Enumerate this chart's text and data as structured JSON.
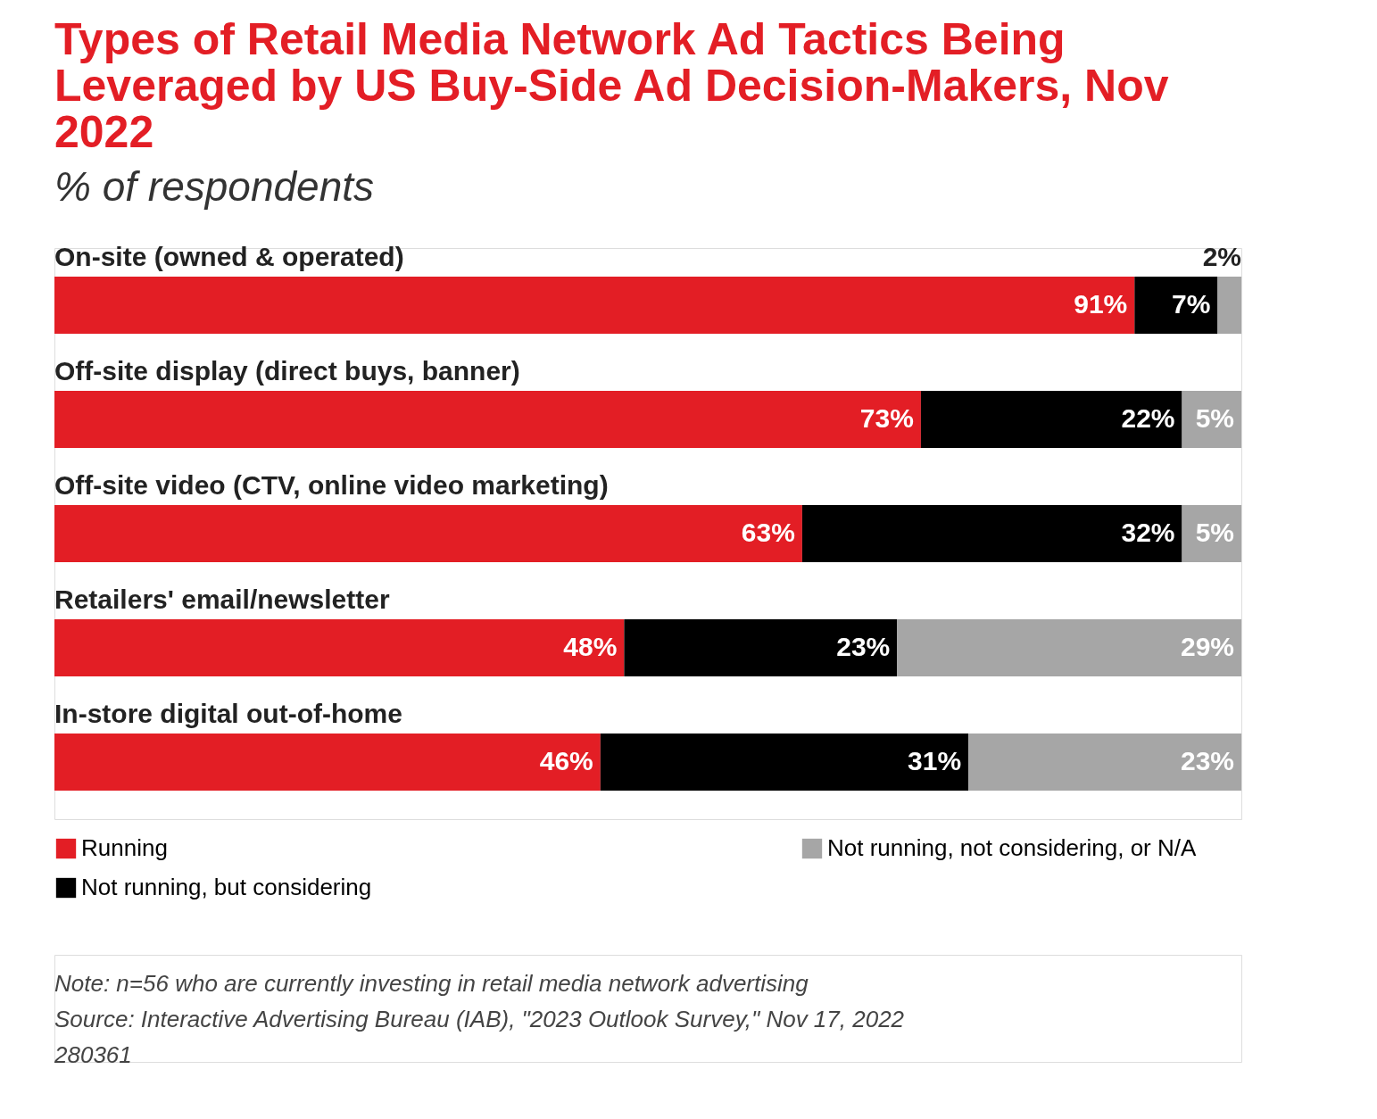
{
  "chart_data": {
    "type": "bar",
    "orientation": "horizontal",
    "stacked": true,
    "title": "Types of Retail Media Network Ad Tactics Being Leveraged by US Buy-Side Ad Decision-Makers, Nov 2022",
    "subtitle": "% of respondents",
    "categories": [
      "On-site (owned & operated)",
      "Off-site display (direct buys, banner)",
      "Off-site video (CTV, online video marketing)",
      "Retailers' email/newsletter",
      "In-store digital out-of-home"
    ],
    "series": [
      {
        "name": "Running",
        "color": "#e31e25",
        "values": [
          91,
          73,
          63,
          48,
          46
        ],
        "value_labels": [
          "91%",
          "73%",
          "63%",
          "48%",
          "46%"
        ]
      },
      {
        "name": "Not running, but considering",
        "color": "#000000",
        "values": [
          7,
          22,
          32,
          23,
          31
        ],
        "value_labels": [
          "7%",
          "22%",
          "32%",
          "23%",
          "31%"
        ]
      },
      {
        "name": "Not running, not considering, or N/A",
        "color": "#a6a6a6",
        "values": [
          2,
          5,
          5,
          29,
          23
        ],
        "value_labels": [
          "2%",
          "5%",
          "5%",
          "29%",
          "23%"
        ]
      }
    ],
    "legend": "bottom",
    "annotations": [
      "Note: n=56 who are currently investing in retail media network advertising",
      "Source: Interactive Advertising Bureau (IAB), \"2023 Outlook Survey,\" Nov 17, 2022",
      "280361"
    ]
  }
}
